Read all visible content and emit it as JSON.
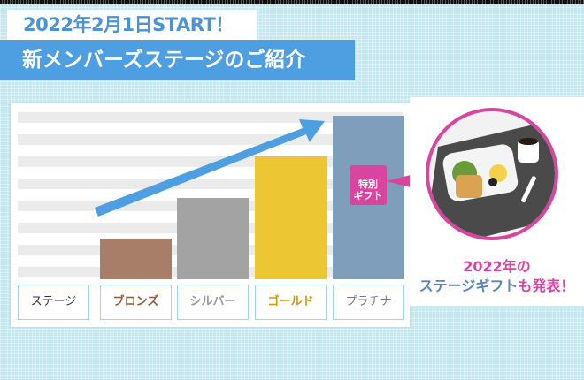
{
  "header": {
    "date": "2022年2月1日START！",
    "title": "新メンバーズステージのご紹介"
  },
  "chart_data": {
    "type": "bar",
    "categories": [
      "ブロンズ",
      "シルバー",
      "ゴールド",
      "プラチナ"
    ],
    "row_header": "ステージ",
    "values": [
      1,
      2,
      3,
      4
    ],
    "colors": [
      "#a97e68",
      "#a3a3a3",
      "#ecc633",
      "#7f9ebb"
    ],
    "label_colors": [
      "#8e5a3c",
      "#999999",
      "#c99a12",
      "#777777"
    ],
    "trend_arrow": "up"
  },
  "gift_badge": {
    "line1": "特別",
    "line2": "ギフト"
  },
  "gift": {
    "caption_line1": "2022年の",
    "caption_line2a": "ステージギフト",
    "caption_line2b": "も発表！",
    "image": "breakfast-plate-photo"
  },
  "colors": {
    "accent_blue": "#4e9fe2",
    "pink": "#d8459f",
    "background": "#bfe9f3"
  }
}
